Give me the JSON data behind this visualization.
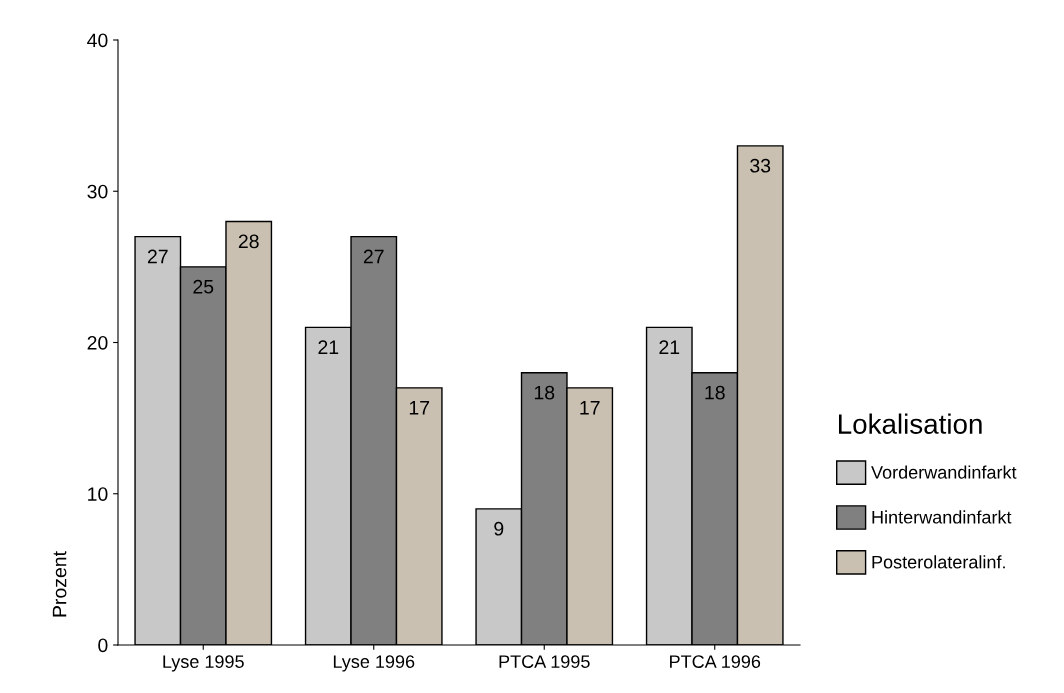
{
  "chart_data": {
    "type": "bar",
    "ylabel": "Prozent",
    "legend_title": "Lokalisation",
    "categories": [
      "Lyse 1995",
      "Lyse 1996",
      "PTCA 1995",
      "PTCA 1996"
    ],
    "series": [
      {
        "name": "Vorderwandinfarkt",
        "color": "#c8c8c8",
        "values": [
          27,
          21,
          9,
          21
        ]
      },
      {
        "name": "Hinterwandinfarkt",
        "color": "#808080",
        "values": [
          25,
          27,
          18,
          18
        ]
      },
      {
        "name": "Posterolateralinf.",
        "color": "#c9c0b1",
        "values": [
          28,
          17,
          17,
          33
        ]
      }
    ],
    "ylim": [
      0,
      40
    ],
    "yticks": [
      0,
      10,
      20,
      30,
      40
    ],
    "grid": false,
    "legend": "right",
    "data_labels": true
  }
}
